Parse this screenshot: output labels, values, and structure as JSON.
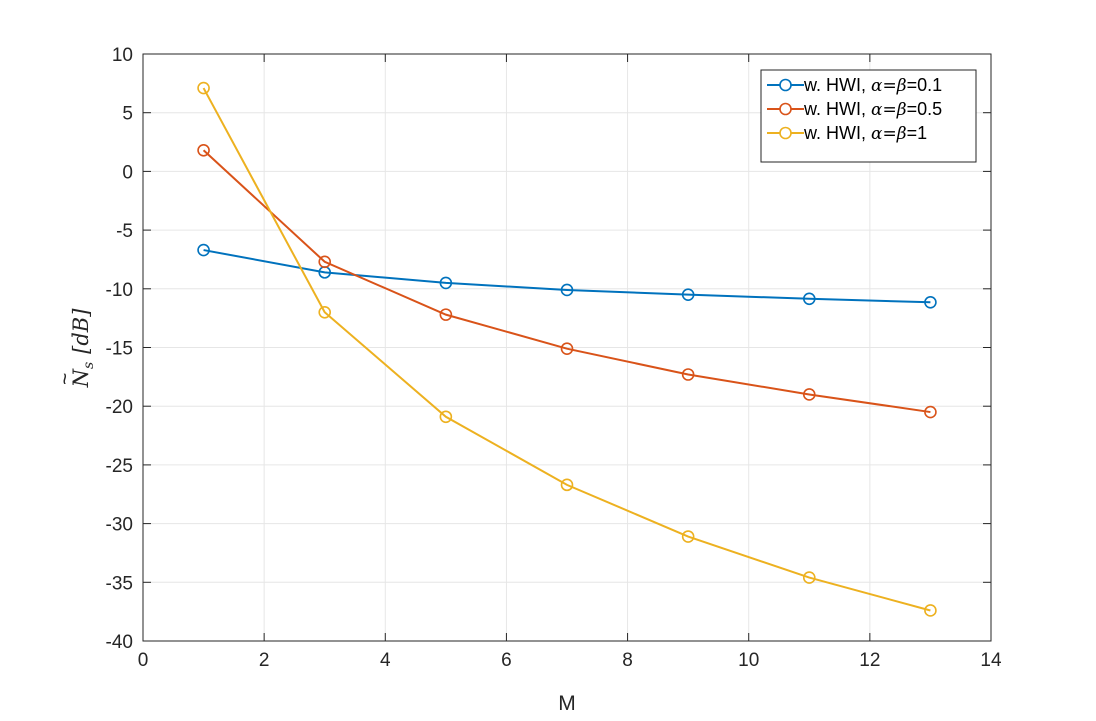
{
  "chart_data": {
    "type": "line",
    "title": "",
    "xlabel": "M",
    "ylabel": "Ñ_s [dB]",
    "ylabel_base": "N",
    "ylabel_tilde": "~",
    "ylabel_sub": "s",
    "ylabel_unit": "[dB]",
    "xlim": [
      0,
      14
    ],
    "ylim": [
      -40,
      10
    ],
    "xticks": [
      0,
      2,
      4,
      6,
      8,
      10,
      12,
      14
    ],
    "yticks": [
      10,
      5,
      0,
      -5,
      -10,
      -15,
      -20,
      -25,
      -30,
      -35,
      -40
    ],
    "grid": true,
    "legend_position": "top-right",
    "x": [
      1,
      3,
      5,
      7,
      9,
      11,
      13
    ],
    "series": [
      {
        "name": "w. HWI, α=β=0.1",
        "legend_prefix": "w. HWI, ",
        "legend_math": "α=β",
        "legend_value": "=0.1",
        "color": "#0072BD",
        "values": [
          -6.7,
          -8.6,
          -9.5,
          -10.1,
          -10.5,
          -10.85,
          -11.15
        ]
      },
      {
        "name": "w. HWI, α=β=0.5",
        "legend_prefix": "w. HWI, ",
        "legend_math": "α=β",
        "legend_value": "=0.5",
        "color": "#D95319",
        "values": [
          1.8,
          -7.7,
          -12.2,
          -15.1,
          -17.3,
          -19.0,
          -20.5
        ]
      },
      {
        "name": "w. HWI, α=β=1",
        "legend_prefix": "w. HWI, ",
        "legend_math": "α=β",
        "legend_value": "=1",
        "color": "#EDB120",
        "values": [
          7.1,
          -12.0,
          -20.9,
          -26.7,
          -31.1,
          -34.6,
          -37.4
        ]
      }
    ]
  }
}
